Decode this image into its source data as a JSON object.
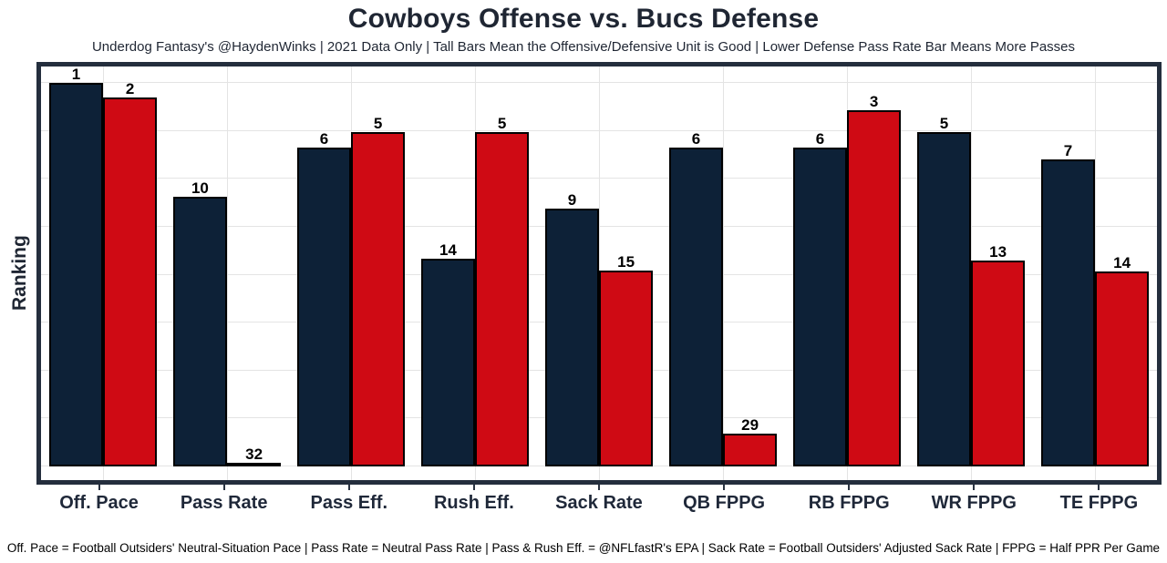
{
  "header": {
    "title": "Cowboys Offense vs. Bucs Defense",
    "subtitle": "Underdog Fantasy's @HaydenWinks | 2021 Data Only | Tall Bars Mean the Offensive/Defensive Unit is Good | Lower Defense Pass Rate Bar Means More Passes"
  },
  "footer": {
    "note": "Off. Pace = Football Outsiders' Neutral-Situation Pace | Pass Rate = Neutral Pass Rate | Pass & Rush Eff. = @NFLfastR's EPA | Sack Rate = Football Outsiders' Adjusted Sack Rate | FPPG = Half PPR Per Game"
  },
  "chart_data": {
    "type": "bar",
    "title": "Cowboys Offense vs. Bucs Defense",
    "subtitle": "Underdog Fantasy's @HaydenWinks | 2021 Data Only | Tall Bars Mean the Offensive/Defensive Unit is Good | Lower Defense Pass Rate Bar Means More Passes",
    "xlabel": "",
    "ylabel": "Ranking",
    "legend_position": "none",
    "grid": true,
    "y_tick_labels_visible": false,
    "gridline_intervals": 8,
    "categories": [
      "Off. Pace",
      "Pass Rate",
      "Pass Eff.",
      "Rush Eff.",
      "Sack Rate",
      "QB FPPG",
      "RB FPPG",
      "WR FPPG",
      "TE FPPG"
    ],
    "series": [
      {
        "name": "Cowboys Offense",
        "color": "#0d2137",
        "ranks": [
          1,
          10,
          6,
          14,
          9,
          6,
          6,
          5,
          7
        ],
        "bar_height_pct": [
          95.5,
          67.1,
          79.4,
          51.7,
          64.2,
          79.4,
          79.4,
          83.2,
          76.4
        ]
      },
      {
        "name": "Bucs Defense",
        "color": "#cf0a14",
        "ranks": [
          2,
          32,
          5,
          5,
          15,
          29,
          3,
          13,
          14
        ],
        "bar_height_pct": [
          91.8,
          0.4,
          83.2,
          83.2,
          48.8,
          8.2,
          88.7,
          51.2,
          48.5
        ]
      }
    ]
  }
}
